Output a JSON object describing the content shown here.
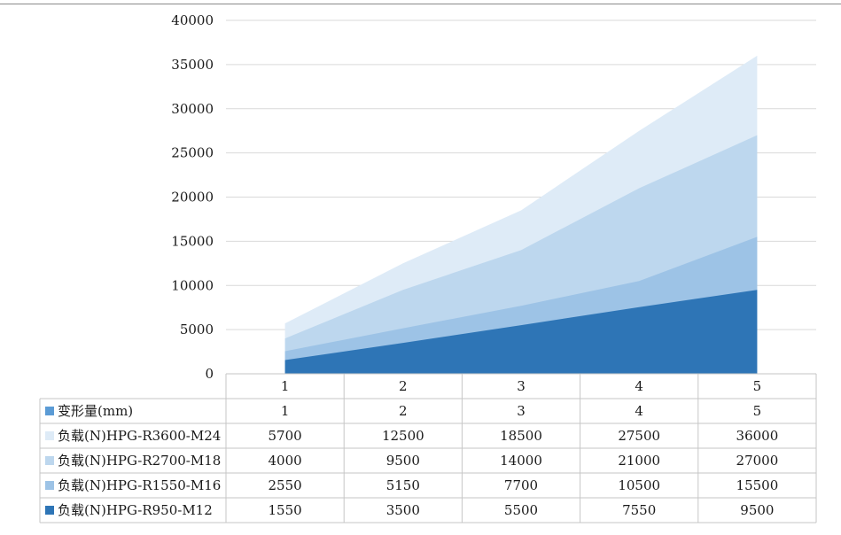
{
  "chart_data": {
    "type": "area",
    "stacked": false,
    "x": [
      "1",
      "2",
      "3",
      "4",
      "5"
    ],
    "ylim": [
      0,
      40000
    ],
    "yticks": [
      "0",
      "5000",
      "10000",
      "15000",
      "20000",
      "25000",
      "30000",
      "35000",
      "40000"
    ],
    "grid": true,
    "legend": "table-bottom",
    "table_header_row": [
      "1",
      "2",
      "3",
      "4",
      "5"
    ],
    "table_rows": [
      {
        "name": "变形量(mm)",
        "color": "#5b9bd5",
        "plotted": false,
        "cells": [
          "1",
          "2",
          "3",
          "4",
          "5"
        ]
      },
      {
        "name": "负载(N)HPG-R3600-M24",
        "color": "#deebf7",
        "plotted": true,
        "values": [
          5700,
          12500,
          18500,
          27500,
          36000
        ],
        "cells": [
          "5700",
          "12500",
          "18500",
          "27500",
          "36000"
        ]
      },
      {
        "name": "负载(N)HPG-R2700-M18",
        "color": "#bdd7ee",
        "plotted": true,
        "values": [
          4000,
          9500,
          14000,
          21000,
          27000
        ],
        "cells": [
          "4000",
          "9500",
          "14000",
          "21000",
          "27000"
        ]
      },
      {
        "name": "负载(N)HPG-R1550-M16",
        "color": "#9dc3e6",
        "plotted": true,
        "values": [
          2550,
          5150,
          7700,
          10500,
          15500
        ],
        "cells": [
          "2550",
          "5150",
          "7700",
          "10500",
          "15500"
        ]
      },
      {
        "name": "负载(N)HPG-R950-M12",
        "color": "#2e75b6",
        "plotted": true,
        "values": [
          1550,
          3500,
          5500,
          7550,
          9500
        ],
        "cells": [
          "1550",
          "3500",
          "5500",
          "7550",
          "9500"
        ]
      }
    ]
  }
}
